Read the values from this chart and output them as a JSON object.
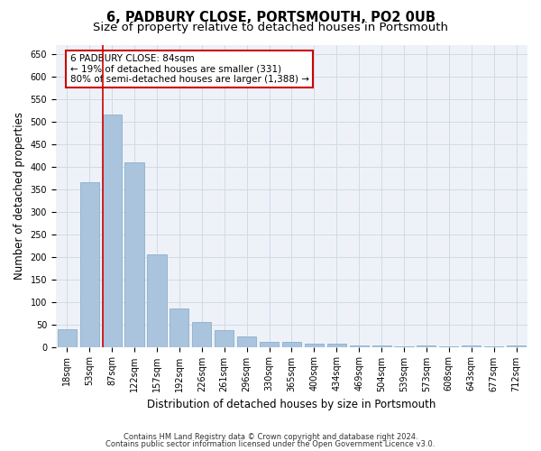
{
  "title": "6, PADBURY CLOSE, PORTSMOUTH, PO2 0UB",
  "subtitle": "Size of property relative to detached houses in Portsmouth",
  "xlabel": "Distribution of detached houses by size in Portsmouth",
  "ylabel": "Number of detached properties",
  "categories": [
    "18sqm",
    "53sqm",
    "87sqm",
    "122sqm",
    "157sqm",
    "192sqm",
    "226sqm",
    "261sqm",
    "296sqm",
    "330sqm",
    "365sqm",
    "400sqm",
    "434sqm",
    "469sqm",
    "504sqm",
    "539sqm",
    "573sqm",
    "608sqm",
    "643sqm",
    "677sqm",
    "712sqm"
  ],
  "values": [
    40,
    365,
    515,
    410,
    205,
    85,
    55,
    37,
    23,
    12,
    11,
    8,
    7,
    3,
    4,
    2,
    4,
    1,
    4,
    1,
    4
  ],
  "bar_color": "#aac4de",
  "bar_edge_color": "#8ab0cc",
  "vline_color": "#cc0000",
  "vline_x_index": 2,
  "annotation_text": "6 PADBURY CLOSE: 84sqm\n← 19% of detached houses are smaller (331)\n80% of semi-detached houses are larger (1,388) →",
  "annotation_box_color": "#ffffff",
  "annotation_box_edge": "#cc0000",
  "ylim": [
    0,
    670
  ],
  "yticks": [
    0,
    50,
    100,
    150,
    200,
    250,
    300,
    350,
    400,
    450,
    500,
    550,
    600,
    650
  ],
  "footer1": "Contains HM Land Registry data © Crown copyright and database right 2024.",
  "footer2": "Contains public sector information licensed under the Open Government Licence v3.0.",
  "bg_color": "#eef2f8",
  "grid_color": "#d0dae8",
  "title_fontsize": 10.5,
  "subtitle_fontsize": 9.5,
  "tick_fontsize": 7,
  "ylabel_fontsize": 8.5,
  "xlabel_fontsize": 8.5,
  "annotation_fontsize": 7.5,
  "footer_fontsize": 6
}
